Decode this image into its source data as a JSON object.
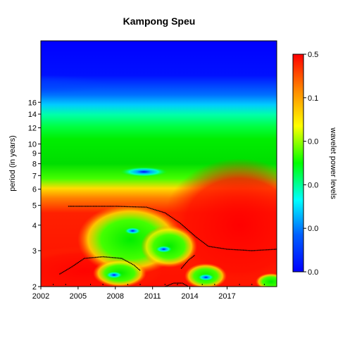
{
  "chart_data": {
    "type": "heatmap",
    "title": "Kampong Speu",
    "xlabel": "",
    "ylabel": "period (in years)",
    "x_tick_labels": [
      "2002",
      "2005",
      "2008",
      "2011",
      "2014",
      "2017"
    ],
    "x_ticks": [
      2002,
      2005,
      2008,
      2011,
      2014,
      2017
    ],
    "xlim": [
      2002,
      2021
    ],
    "y_scale": "log2",
    "y_ticks": [
      2,
      3,
      4,
      5,
      6,
      7,
      8,
      9,
      10,
      12,
      14,
      16
    ],
    "y_tick_labels": [
      "2",
      "3",
      "4",
      "5",
      "6",
      "7",
      "8",
      "9",
      "10",
      "12",
      "14",
      "16"
    ],
    "ylim": [
      2,
      32
    ],
    "colorbar": {
      "label": "wavelet power levels",
      "tick_labels": [
        "0.5",
        "0.1",
        "0.0",
        "0.0",
        "0.0",
        "0.0"
      ],
      "colors": [
        "#ff0000",
        "#ff8c00",
        "#ffff00",
        "#00ff00",
        "#00ffff",
        "#0060ff",
        "#0000ff"
      ]
    },
    "significance_contours": [
      {
        "points": [
          [
            2004.2,
            4.95
          ],
          [
            2008,
            4.95
          ],
          [
            2010.5,
            4.9
          ],
          [
            2012,
            4.6
          ],
          [
            2013.2,
            4.1
          ],
          [
            2014.5,
            3.5
          ],
          [
            2015.5,
            3.15
          ],
          [
            2017,
            3.05
          ],
          [
            2019,
            3.0
          ],
          [
            2021,
            3.05
          ]
        ]
      },
      {
        "points": [
          [
            2003.5,
            2.3
          ],
          [
            2004.5,
            2.5
          ],
          [
            2005.5,
            2.75
          ],
          [
            2007,
            2.8
          ],
          [
            2008.5,
            2.75
          ],
          [
            2009.5,
            2.55
          ],
          [
            2010,
            2.4
          ]
        ]
      },
      {
        "points": [
          [
            2013.3,
            2.45
          ],
          [
            2013.9,
            2.7
          ],
          [
            2014.4,
            2.85
          ]
        ]
      },
      {
        "points": [
          [
            2012,
            2.0
          ],
          [
            2012.7,
            2.08
          ],
          [
            2013.4,
            2.08
          ],
          [
            2013.9,
            2.0
          ]
        ]
      }
    ],
    "power_minima": [
      {
        "x": 2010.3,
        "period": 7.3
      },
      {
        "x": 2009.4,
        "period": 3.75
      },
      {
        "x": 2011.9,
        "period": 3.05
      },
      {
        "x": 2007.9,
        "period": 2.28
      },
      {
        "x": 2015.3,
        "period": 2.22
      }
    ]
  }
}
